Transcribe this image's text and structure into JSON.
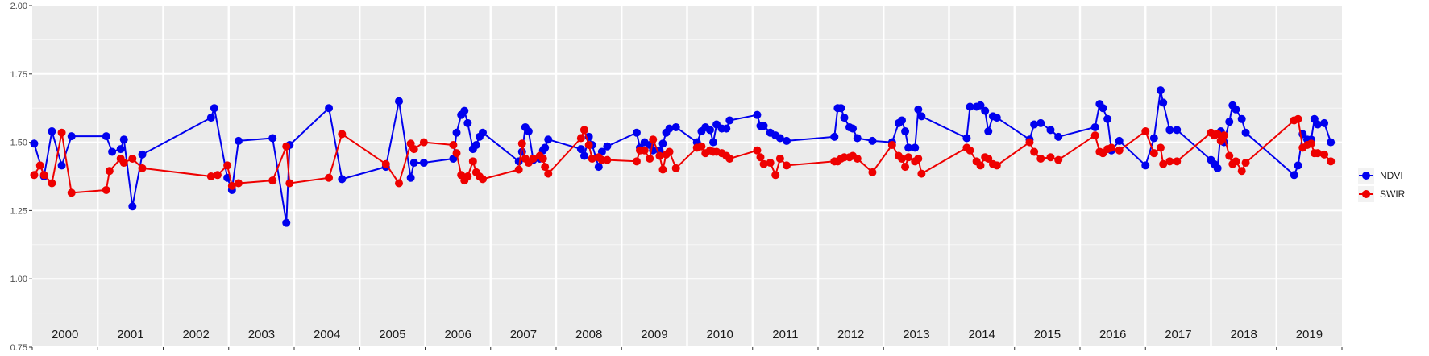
{
  "chart_data": {
    "type": "line",
    "title": "",
    "xlabel": "",
    "ylabel": "",
    "ylim": [
      0.75,
      2.0
    ],
    "y_ticks": [
      "0.75",
      "1.00",
      "1.25",
      "1.50",
      "1.75",
      "2.00"
    ],
    "x_range": [
      2000,
      2020
    ],
    "years": [
      "2000",
      "2001",
      "2002",
      "2003",
      "2004",
      "2005",
      "2006",
      "2007",
      "2008",
      "2009",
      "2010",
      "2011",
      "2012",
      "2013",
      "2014",
      "2015",
      "2016",
      "2017",
      "2018",
      "2019"
    ],
    "grid": true,
    "legend_position": "right",
    "series": [
      {
        "name": "NDVI",
        "color": "#0000ee",
        "points": [
          [
            2000.03,
            1.495
          ],
          [
            2000.18,
            1.375
          ],
          [
            2000.3,
            1.54
          ],
          [
            2000.45,
            1.415
          ],
          [
            2000.6,
            1.522
          ],
          [
            2001.13,
            1.522
          ],
          [
            2001.22,
            1.465
          ],
          [
            2001.35,
            1.475
          ],
          [
            2001.4,
            1.51
          ],
          [
            2001.53,
            1.265
          ],
          [
            2001.68,
            1.455
          ],
          [
            2002.73,
            1.59
          ],
          [
            2002.78,
            1.625
          ],
          [
            2002.98,
            1.37
          ],
          [
            2003.05,
            1.325
          ],
          [
            2003.15,
            1.505
          ],
          [
            2003.67,
            1.515
          ],
          [
            2003.88,
            1.205
          ],
          [
            2003.93,
            1.49
          ],
          [
            2004.53,
            1.625
          ],
          [
            2004.73,
            1.365
          ],
          [
            2005.4,
            1.41
          ],
          [
            2005.6,
            1.65
          ],
          [
            2005.78,
            1.37
          ],
          [
            2005.83,
            1.425
          ],
          [
            2005.98,
            1.425
          ],
          [
            2006.43,
            1.44
          ],
          [
            2006.48,
            1.535
          ],
          [
            2006.55,
            1.6
          ],
          [
            2006.6,
            1.615
          ],
          [
            2006.65,
            1.57
          ],
          [
            2006.73,
            1.475
          ],
          [
            2006.78,
            1.49
          ],
          [
            2006.83,
            1.52
          ],
          [
            2006.88,
            1.535
          ],
          [
            2007.43,
            1.43
          ],
          [
            2007.48,
            1.465
          ],
          [
            2007.53,
            1.555
          ],
          [
            2007.58,
            1.54
          ],
          [
            2007.65,
            1.435
          ],
          [
            2007.75,
            1.44
          ],
          [
            2007.8,
            1.47
          ],
          [
            2007.83,
            1.48
          ],
          [
            2007.88,
            1.51
          ],
          [
            2008.38,
            1.475
          ],
          [
            2008.43,
            1.45
          ],
          [
            2008.5,
            1.52
          ],
          [
            2008.55,
            1.49
          ],
          [
            2008.65,
            1.41
          ],
          [
            2008.7,
            1.465
          ],
          [
            2008.78,
            1.485
          ],
          [
            2009.23,
            1.535
          ],
          [
            2009.28,
            1.48
          ],
          [
            2009.35,
            1.5
          ],
          [
            2009.43,
            1.49
          ],
          [
            2009.48,
            1.47
          ],
          [
            2009.58,
            1.47
          ],
          [
            2009.63,
            1.495
          ],
          [
            2009.68,
            1.535
          ],
          [
            2009.73,
            1.55
          ],
          [
            2009.83,
            1.555
          ],
          [
            2010.15,
            1.5
          ],
          [
            2010.22,
            1.54
          ],
          [
            2010.28,
            1.555
          ],
          [
            2010.35,
            1.545
          ],
          [
            2010.4,
            1.5
          ],
          [
            2010.45,
            1.565
          ],
          [
            2010.53,
            1.55
          ],
          [
            2010.6,
            1.55
          ],
          [
            2010.65,
            1.58
          ],
          [
            2011.07,
            1.6
          ],
          [
            2011.12,
            1.56
          ],
          [
            2011.17,
            1.56
          ],
          [
            2011.27,
            1.535
          ],
          [
            2011.35,
            1.525
          ],
          [
            2011.42,
            1.515
          ],
          [
            2011.52,
            1.505
          ],
          [
            2012.25,
            1.52
          ],
          [
            2012.3,
            1.625
          ],
          [
            2012.35,
            1.625
          ],
          [
            2012.4,
            1.59
          ],
          [
            2012.48,
            1.555
          ],
          [
            2012.53,
            1.55
          ],
          [
            2012.6,
            1.515
          ],
          [
            2012.83,
            1.505
          ],
          [
            2013.13,
            1.5
          ],
          [
            2013.23,
            1.57
          ],
          [
            2013.28,
            1.58
          ],
          [
            2013.33,
            1.54
          ],
          [
            2013.38,
            1.48
          ],
          [
            2013.48,
            1.48
          ],
          [
            2013.53,
            1.62
          ],
          [
            2013.58,
            1.595
          ],
          [
            2014.27,
            1.515
          ],
          [
            2014.32,
            1.63
          ],
          [
            2014.42,
            1.63
          ],
          [
            2014.48,
            1.635
          ],
          [
            2014.55,
            1.615
          ],
          [
            2014.6,
            1.54
          ],
          [
            2014.67,
            1.595
          ],
          [
            2014.73,
            1.59
          ],
          [
            2015.23,
            1.51
          ],
          [
            2015.3,
            1.565
          ],
          [
            2015.4,
            1.57
          ],
          [
            2015.55,
            1.545
          ],
          [
            2015.67,
            1.52
          ],
          [
            2016.23,
            1.555
          ],
          [
            2016.3,
            1.64
          ],
          [
            2016.35,
            1.625
          ],
          [
            2016.42,
            1.585
          ],
          [
            2016.48,
            1.47
          ],
          [
            2016.6,
            1.505
          ],
          [
            2017.0,
            1.415
          ],
          [
            2017.13,
            1.515
          ],
          [
            2017.23,
            1.69
          ],
          [
            2017.27,
            1.645
          ],
          [
            2017.37,
            1.545
          ],
          [
            2017.48,
            1.545
          ],
          [
            2018.0,
            1.435
          ],
          [
            2018.05,
            1.42
          ],
          [
            2018.1,
            1.405
          ],
          [
            2018.15,
            1.54
          ],
          [
            2018.2,
            1.5
          ],
          [
            2018.28,
            1.575
          ],
          [
            2018.33,
            1.635
          ],
          [
            2018.38,
            1.62
          ],
          [
            2018.47,
            1.585
          ],
          [
            2018.53,
            1.535
          ],
          [
            2019.27,
            1.38
          ],
          [
            2019.33,
            1.415
          ],
          [
            2019.4,
            1.53
          ],
          [
            2019.47,
            1.51
          ],
          [
            2019.53,
            1.51
          ],
          [
            2019.58,
            1.585
          ],
          [
            2019.63,
            1.565
          ],
          [
            2019.73,
            1.57
          ],
          [
            2019.83,
            1.5
          ]
        ]
      },
      {
        "name": "SWIR",
        "color": "#ee0000",
        "points": [
          [
            2000.03,
            1.38
          ],
          [
            2000.12,
            1.415
          ],
          [
            2000.18,
            1.38
          ],
          [
            2000.3,
            1.35
          ],
          [
            2000.45,
            1.535
          ],
          [
            2000.6,
            1.315
          ],
          [
            2001.13,
            1.325
          ],
          [
            2001.18,
            1.395
          ],
          [
            2001.35,
            1.44
          ],
          [
            2001.4,
            1.425
          ],
          [
            2001.53,
            1.44
          ],
          [
            2001.68,
            1.405
          ],
          [
            2002.73,
            1.375
          ],
          [
            2002.83,
            1.38
          ],
          [
            2002.98,
            1.415
          ],
          [
            2003.05,
            1.34
          ],
          [
            2003.15,
            1.35
          ],
          [
            2003.67,
            1.36
          ],
          [
            2003.88,
            1.485
          ],
          [
            2003.93,
            1.35
          ],
          [
            2004.53,
            1.37
          ],
          [
            2004.73,
            1.53
          ],
          [
            2005.4,
            1.42
          ],
          [
            2005.6,
            1.35
          ],
          [
            2005.78,
            1.495
          ],
          [
            2005.83,
            1.475
          ],
          [
            2005.98,
            1.5
          ],
          [
            2006.43,
            1.49
          ],
          [
            2006.48,
            1.46
          ],
          [
            2006.55,
            1.38
          ],
          [
            2006.6,
            1.36
          ],
          [
            2006.65,
            1.375
          ],
          [
            2006.73,
            1.43
          ],
          [
            2006.78,
            1.39
          ],
          [
            2006.83,
            1.375
          ],
          [
            2006.88,
            1.365
          ],
          [
            2007.43,
            1.4
          ],
          [
            2007.48,
            1.495
          ],
          [
            2007.53,
            1.44
          ],
          [
            2007.58,
            1.425
          ],
          [
            2007.65,
            1.44
          ],
          [
            2007.75,
            1.45
          ],
          [
            2007.8,
            1.44
          ],
          [
            2007.83,
            1.41
          ],
          [
            2007.88,
            1.385
          ],
          [
            2008.38,
            1.515
          ],
          [
            2008.43,
            1.545
          ],
          [
            2008.5,
            1.49
          ],
          [
            2008.55,
            1.44
          ],
          [
            2008.65,
            1.445
          ],
          [
            2008.7,
            1.435
          ],
          [
            2008.78,
            1.435
          ],
          [
            2009.23,
            1.43
          ],
          [
            2009.28,
            1.47
          ],
          [
            2009.35,
            1.47
          ],
          [
            2009.43,
            1.44
          ],
          [
            2009.48,
            1.51
          ],
          [
            2009.58,
            1.45
          ],
          [
            2009.63,
            1.4
          ],
          [
            2009.68,
            1.455
          ],
          [
            2009.73,
            1.465
          ],
          [
            2009.83,
            1.405
          ],
          [
            2010.15,
            1.48
          ],
          [
            2010.22,
            1.485
          ],
          [
            2010.28,
            1.46
          ],
          [
            2010.35,
            1.47
          ],
          [
            2010.4,
            1.465
          ],
          [
            2010.45,
            1.465
          ],
          [
            2010.53,
            1.46
          ],
          [
            2010.6,
            1.45
          ],
          [
            2010.65,
            1.44
          ],
          [
            2011.07,
            1.47
          ],
          [
            2011.12,
            1.445
          ],
          [
            2011.17,
            1.42
          ],
          [
            2011.27,
            1.425
          ],
          [
            2011.35,
            1.38
          ],
          [
            2011.42,
            1.44
          ],
          [
            2011.52,
            1.415
          ],
          [
            2012.25,
            1.43
          ],
          [
            2012.3,
            1.43
          ],
          [
            2012.35,
            1.44
          ],
          [
            2012.4,
            1.445
          ],
          [
            2012.48,
            1.445
          ],
          [
            2012.53,
            1.45
          ],
          [
            2012.6,
            1.44
          ],
          [
            2012.83,
            1.39
          ],
          [
            2013.13,
            1.49
          ],
          [
            2013.23,
            1.45
          ],
          [
            2013.28,
            1.44
          ],
          [
            2013.33,
            1.41
          ],
          [
            2013.38,
            1.445
          ],
          [
            2013.48,
            1.43
          ],
          [
            2013.53,
            1.44
          ],
          [
            2013.58,
            1.385
          ],
          [
            2014.27,
            1.48
          ],
          [
            2014.32,
            1.47
          ],
          [
            2014.42,
            1.43
          ],
          [
            2014.48,
            1.415
          ],
          [
            2014.55,
            1.445
          ],
          [
            2014.6,
            1.44
          ],
          [
            2014.67,
            1.42
          ],
          [
            2014.73,
            1.415
          ],
          [
            2015.23,
            1.5
          ],
          [
            2015.3,
            1.465
          ],
          [
            2015.4,
            1.44
          ],
          [
            2015.55,
            1.445
          ],
          [
            2015.67,
            1.435
          ],
          [
            2016.23,
            1.525
          ],
          [
            2016.3,
            1.465
          ],
          [
            2016.35,
            1.46
          ],
          [
            2016.42,
            1.475
          ],
          [
            2016.48,
            1.48
          ],
          [
            2016.6,
            1.47
          ],
          [
            2017.0,
            1.54
          ],
          [
            2017.13,
            1.46
          ],
          [
            2017.23,
            1.48
          ],
          [
            2017.27,
            1.42
          ],
          [
            2017.37,
            1.43
          ],
          [
            2017.48,
            1.43
          ],
          [
            2018.0,
            1.535
          ],
          [
            2018.05,
            1.525
          ],
          [
            2018.1,
            1.53
          ],
          [
            2018.15,
            1.505
          ],
          [
            2018.2,
            1.525
          ],
          [
            2018.28,
            1.45
          ],
          [
            2018.33,
            1.42
          ],
          [
            2018.38,
            1.43
          ],
          [
            2018.47,
            1.395
          ],
          [
            2018.53,
            1.425
          ],
          [
            2019.27,
            1.58
          ],
          [
            2019.33,
            1.585
          ],
          [
            2019.4,
            1.48
          ],
          [
            2019.47,
            1.49
          ],
          [
            2019.53,
            1.495
          ],
          [
            2019.58,
            1.46
          ],
          [
            2019.63,
            1.46
          ],
          [
            2019.73,
            1.455
          ],
          [
            2019.83,
            1.43
          ]
        ]
      }
    ]
  }
}
